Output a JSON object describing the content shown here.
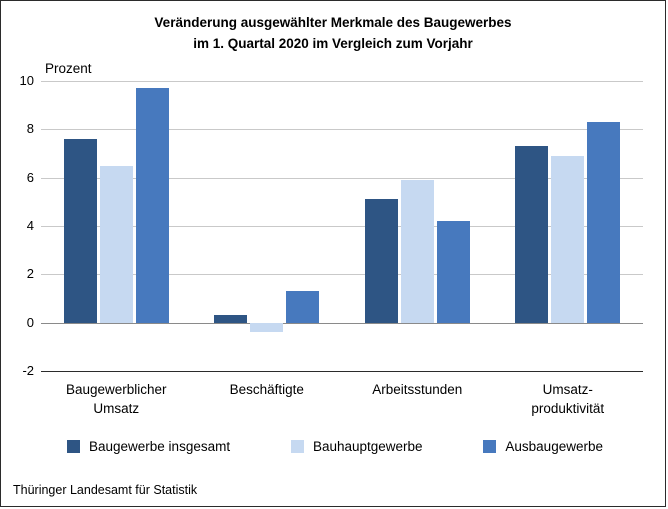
{
  "title": {
    "line1": "Veränderung ausgewählter Merkmale des Baugewerbes",
    "line2": "im 1. Quartal 2020  im Vergleich zum Vorjahr"
  },
  "y_axis_title": "Prozent",
  "source": "Thüringer Landesamt für Statistik",
  "chart_data": {
    "type": "bar",
    "title": "Veränderung ausgewählter Merkmale des Baugewerbes im 1. Quartal 2020 im Vergleich zum Vorjahr",
    "ylabel": "Prozent",
    "categories": [
      "Baugewerblicher\nUmsatz",
      "Beschäftigte",
      "Arbeitsstunden",
      "Umsatz-\nproduktivität"
    ],
    "series": [
      {
        "name": "Baugewerbe insgesamt",
        "color": "#2e5584",
        "values": [
          7.6,
          0.3,
          5.1,
          7.3
        ]
      },
      {
        "name": "Bauhauptgewerbe",
        "color": "#c6d9f1",
        "values": [
          6.5,
          -0.4,
          5.9,
          6.9
        ]
      },
      {
        "name": "Ausbaugewerbe",
        "color": "#4779be",
        "values": [
          9.7,
          1.3,
          4.2,
          8.3
        ]
      }
    ],
    "ylim": [
      -2,
      10
    ],
    "yticks": [
      10,
      8,
      6,
      4,
      2,
      0,
      -2
    ],
    "grid": true,
    "legend_position": "bottom"
  }
}
